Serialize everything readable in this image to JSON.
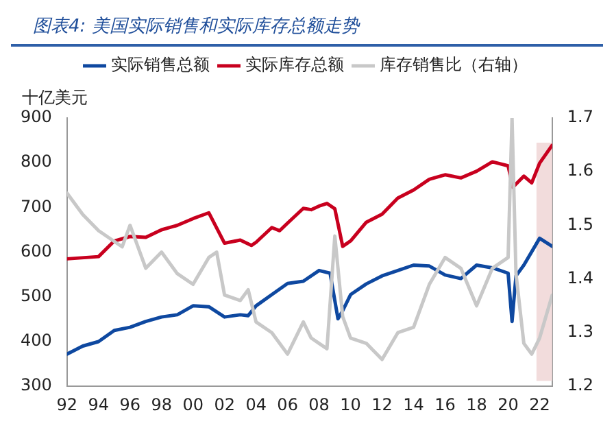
{
  "chart_data": {
    "type": "line",
    "title": "图表4:  美国实际销售和实际库存总额走势",
    "ylabel": "十亿美元",
    "xlim": [
      1992,
      2022.8
    ],
    "xticks": [
      {
        "value": 1992,
        "label": "92"
      },
      {
        "value": 1994,
        "label": "94"
      },
      {
        "value": 1996,
        "label": "96"
      },
      {
        "value": 1998,
        "label": "98"
      },
      {
        "value": 2000,
        "label": "00"
      },
      {
        "value": 2002,
        "label": "02"
      },
      {
        "value": 2004,
        "label": "04"
      },
      {
        "value": 2006,
        "label": "06"
      },
      {
        "value": 2008,
        "label": "08"
      },
      {
        "value": 2010,
        "label": "10"
      },
      {
        "value": 2012,
        "label": "12"
      },
      {
        "value": 2014,
        "label": "14"
      },
      {
        "value": 2016,
        "label": "16"
      },
      {
        "value": 2018,
        "label": "18"
      },
      {
        "value": 2020,
        "label": "20"
      },
      {
        "value": 2022,
        "label": "22"
      }
    ],
    "ylim": [
      300,
      900
    ],
    "yticks": [
      300,
      400,
      500,
      600,
      700,
      800,
      900
    ],
    "y2lim": [
      1.2,
      1.7
    ],
    "y2ticks": [
      1.2,
      1.3,
      1.4,
      1.5,
      1.6,
      1.7
    ],
    "grid": false,
    "legend": "top",
    "marker": "none",
    "line_style": "solid",
    "bands": [
      {
        "axis": "x",
        "from": 2021.8,
        "to": 2022.8,
        "color": "#f2dcdc"
      }
    ],
    "series": [
      {
        "name": "实际销售总额",
        "color": "#0e48a0",
        "x": [
          1992,
          1993,
          1994,
          1995,
          1996,
          1997,
          1998,
          1999,
          2000,
          2001,
          2002,
          2003,
          2003.5,
          2004,
          2005,
          2006,
          2007,
          2008,
          2008.7,
          2009.2,
          2009.5,
          2010,
          2011,
          2012,
          2013,
          2014,
          2015,
          2016,
          2017,
          2018,
          2019,
          2020,
          2020.25,
          2020.5,
          2021,
          2022,
          2022.8
        ],
        "values": [
          372,
          390,
          400,
          425,
          432,
          445,
          455,
          460,
          480,
          478,
          455,
          460,
          458,
          480,
          505,
          530,
          535,
          559,
          553,
          451,
          469,
          505,
          529,
          547,
          559,
          571,
          569,
          549,
          541,
          571,
          565,
          553,
          445,
          547,
          571,
          631,
          613
        ]
      },
      {
        "name": "实际库存总额",
        "color": "#c8001e",
        "x": [
          1992,
          1994,
          1995,
          1996,
          1997,
          1998,
          1999,
          2000,
          2001,
          2002,
          2003,
          2003.7,
          2004,
          2005,
          2005.5,
          2006,
          2007,
          2007.5,
          2008,
          2008.5,
          2009,
          2009.5,
          2010,
          2011,
          2012,
          2013,
          2014,
          2015,
          2016,
          2017,
          2018,
          2019,
          2020,
          2020.3,
          2021,
          2021.5,
          2022,
          2022.8
        ],
        "values": [
          585,
          590,
          625,
          635,
          633,
          650,
          660,
          675,
          688,
          620,
          627,
          615,
          622,
          655,
          648,
          665,
          698,
          695,
          703,
          709,
          697,
          613,
          625,
          667,
          685,
          721,
          739,
          763,
          773,
          766,
          781,
          802,
          793,
          745,
          770,
          755,
          799,
          839
        ]
      },
      {
        "name": "库存销售比（右轴）",
        "color": "#c8c8c8",
        "axis": "y2",
        "x": [
          1992,
          1993,
          1994,
          1995,
          1995.5,
          1996,
          1997,
          1998,
          1999,
          2000,
          2001,
          2001.5,
          2002,
          2003,
          2003.5,
          2004,
          2005,
          2006,
          2007,
          2007.5,
          2008,
          2008.5,
          2009,
          2009.5,
          2010,
          2011,
          2012,
          2013,
          2014,
          2015,
          2016,
          2017,
          2018,
          2019,
          2020,
          2020.25,
          2020.5,
          2021,
          2021.5,
          2022,
          2022.8
        ],
        "values": [
          1.56,
          1.52,
          1.49,
          1.47,
          1.46,
          1.5,
          1.42,
          1.45,
          1.41,
          1.39,
          1.44,
          1.45,
          1.37,
          1.36,
          1.38,
          1.32,
          1.3,
          1.26,
          1.32,
          1.29,
          1.28,
          1.27,
          1.48,
          1.33,
          1.29,
          1.28,
          1.25,
          1.3,
          1.31,
          1.39,
          1.44,
          1.42,
          1.35,
          1.42,
          1.44,
          1.7,
          1.41,
          1.28,
          1.26,
          1.29,
          1.37
        ]
      }
    ]
  }
}
